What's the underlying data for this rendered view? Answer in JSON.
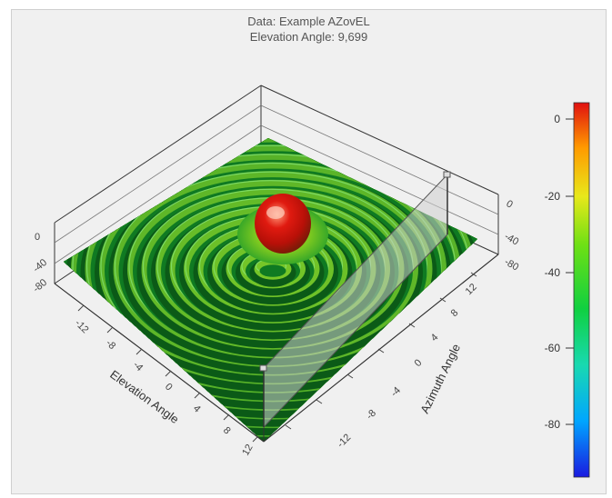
{
  "chart_data": {
    "type": "surface3d",
    "title_line1": "Data: Example AZovEL",
    "title_line2": "Elevation Angle: 9,699",
    "xlabel": "Elevation Angle",
    "ylabel": "Azimuth Angle",
    "x_ticks": [
      "-12",
      "-8",
      "-4",
      "0",
      "4",
      "8",
      "12"
    ],
    "y_ticks": [
      "-12",
      "-8",
      "-4",
      "0",
      "4",
      "8",
      "12"
    ],
    "z_ticks_left": [
      "0",
      "-40",
      "-80"
    ],
    "z_ticks_right": [
      "0",
      "-40",
      "-80"
    ],
    "zlim": [
      -90,
      0
    ],
    "colorbar": {
      "ticks": [
        "0",
        "-20",
        "-40",
        "-60",
        "-80"
      ],
      "range": [
        -90,
        2
      ],
      "colors": [
        "#1a1ae0",
        "#00a6ff",
        "#19d9b0",
        "#10d040",
        "#6ee014",
        "#e8e81a",
        "#ff9a00",
        "#e01010"
      ]
    },
    "slice_plane": {
      "elevation_angle": 9.699
    }
  }
}
